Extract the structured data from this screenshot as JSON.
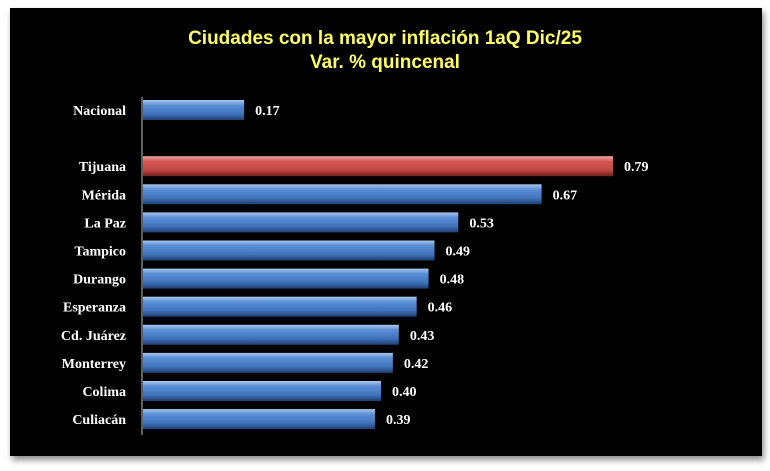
{
  "chart_data": {
    "type": "bar",
    "orientation": "horizontal",
    "title": "Ciudades con la mayor inflación 1aQ Dic/25",
    "subtitle": "Var. % quincenal",
    "categories": [
      "Nacional",
      "Tijuana",
      "Mérida",
      "La Paz",
      "Tampico",
      "Durango",
      "Esperanza",
      "Cd. Juárez",
      "Monterrey",
      "Colima",
      "Culiacán"
    ],
    "values": [
      0.17,
      0.79,
      0.67,
      0.53,
      0.49,
      0.48,
      0.46,
      0.43,
      0.42,
      0.4,
      0.39
    ],
    "value_labels": [
      "0.17",
      "0.79",
      "0.67",
      "0.53",
      "0.49",
      "0.48",
      "0.46",
      "0.43",
      "0.42",
      "0.40",
      "0.39"
    ],
    "highlight": "Tijuana",
    "colors": {
      "default": "#4f81bd",
      "highlight": "#c0504d",
      "background": "#000000",
      "title": "#ffff66"
    },
    "xlim": [
      0,
      0.85
    ],
    "grid": false,
    "legend": "none"
  }
}
